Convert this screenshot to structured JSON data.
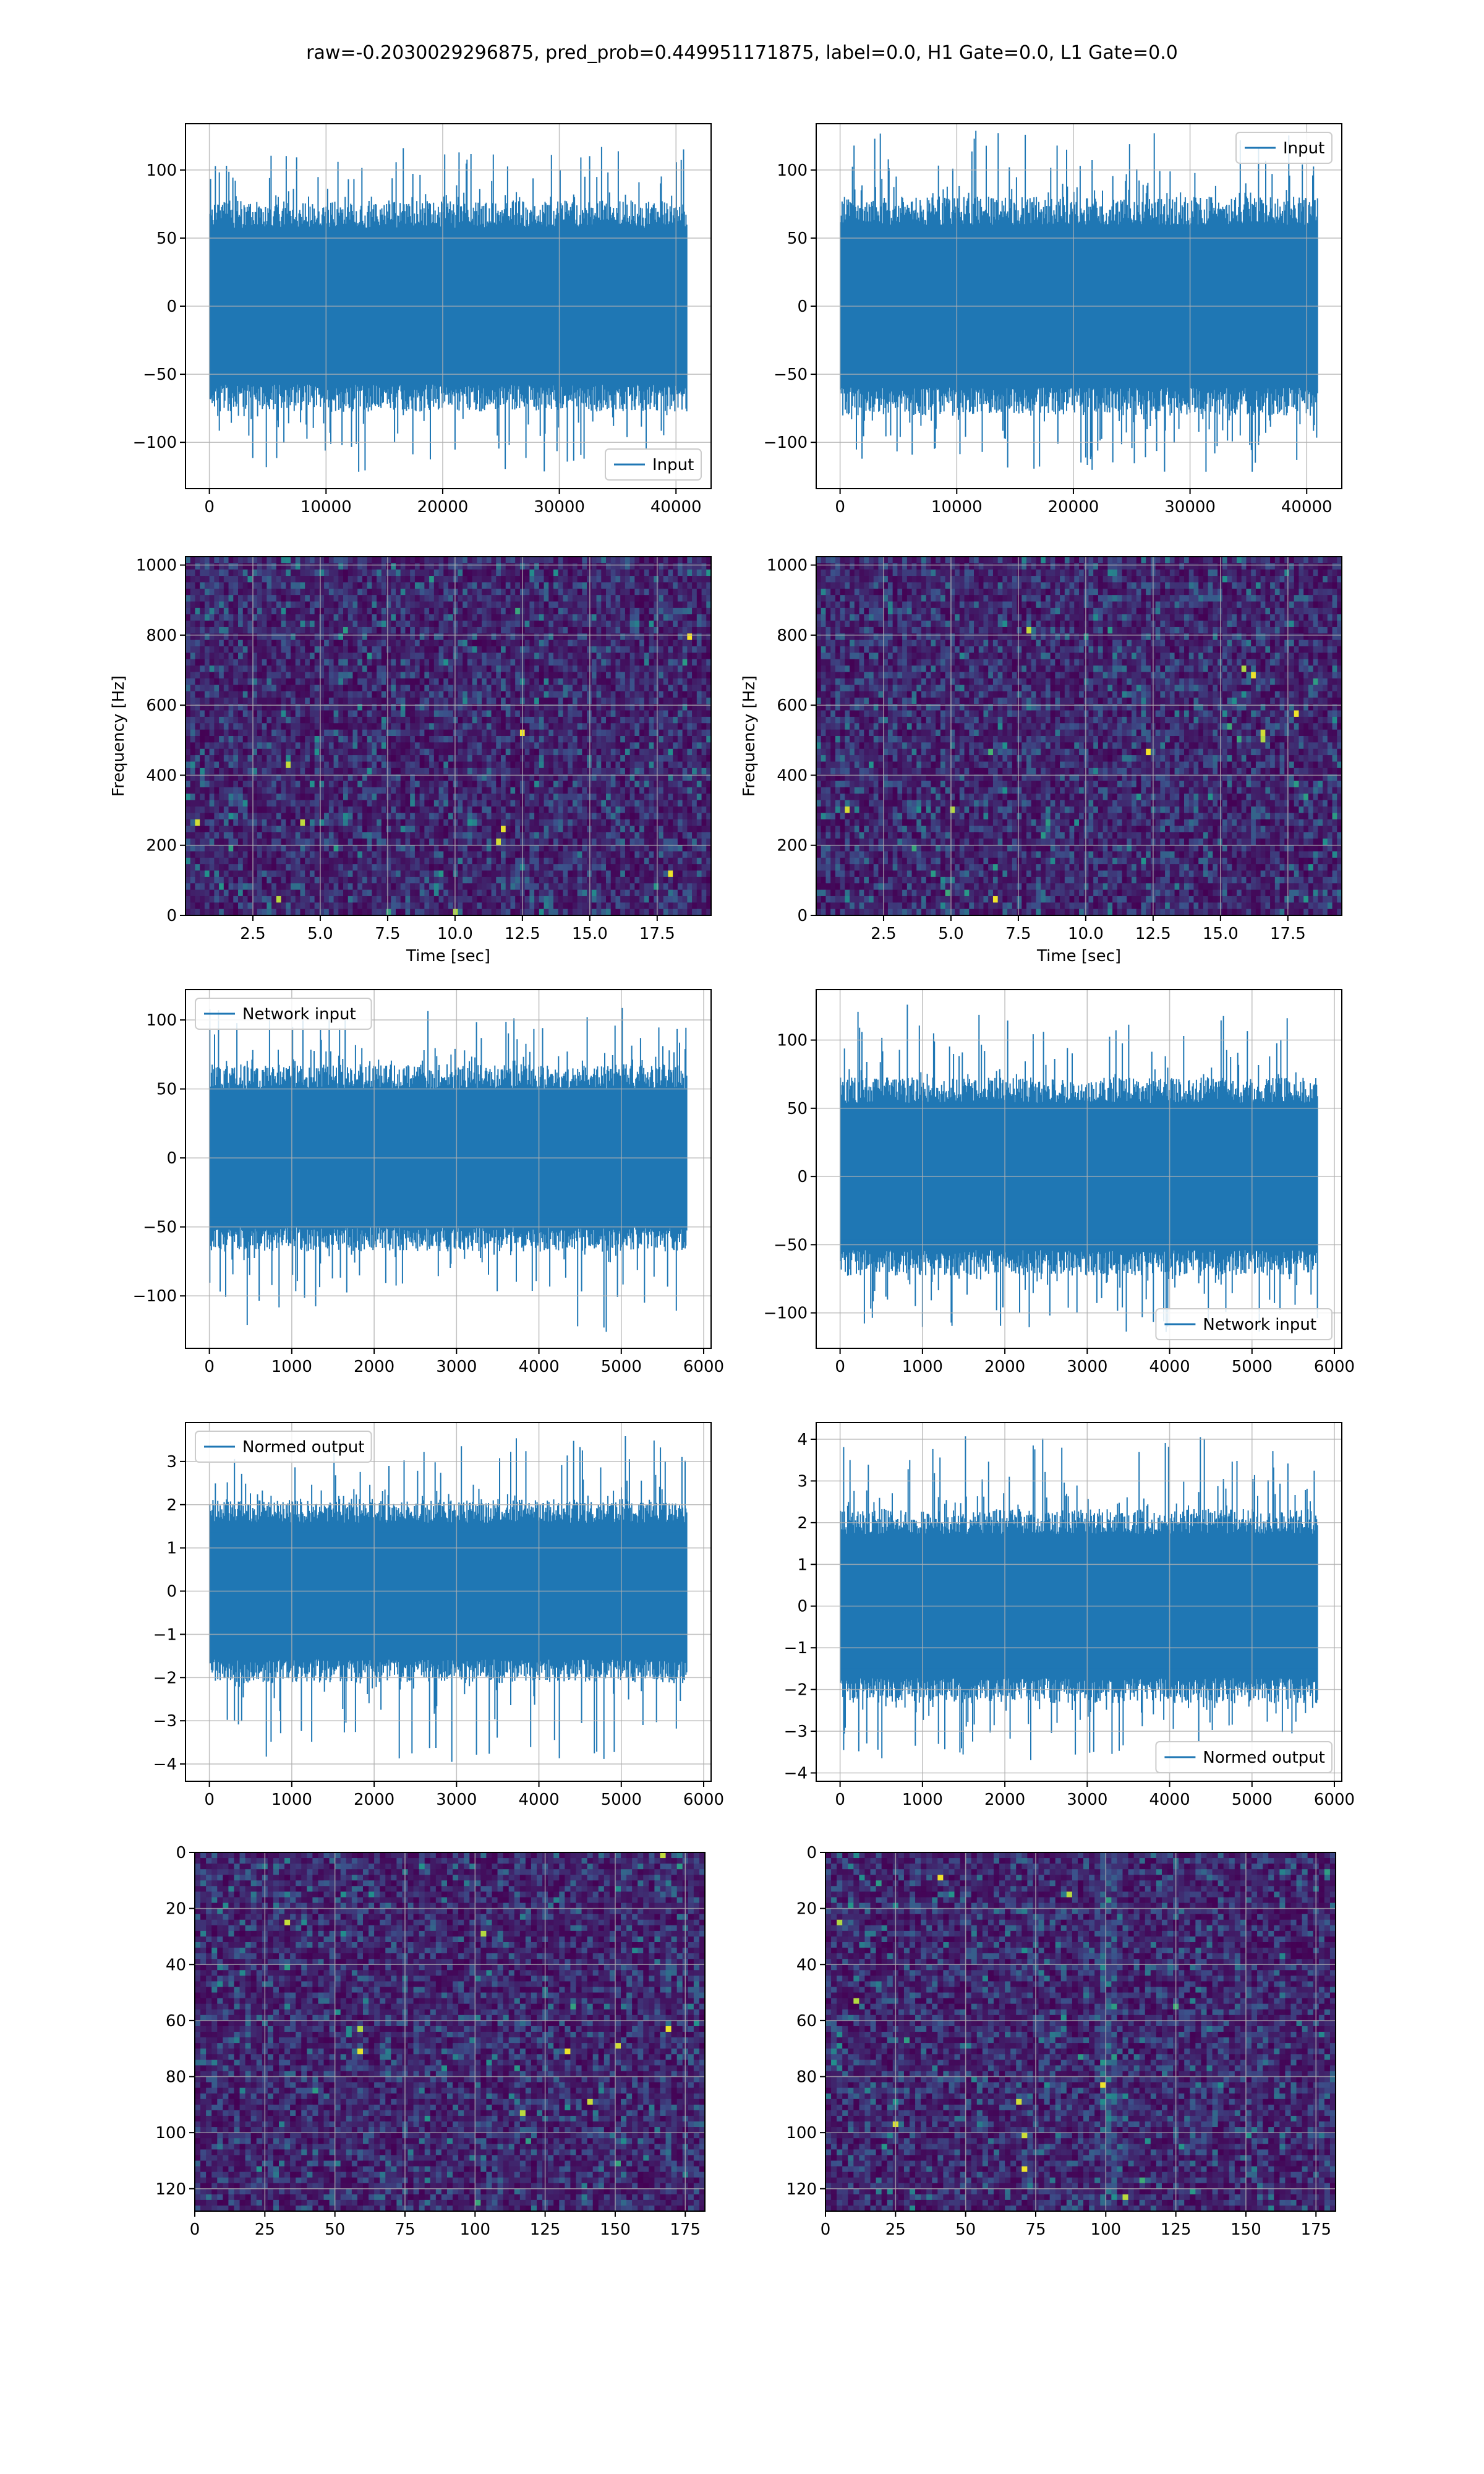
{
  "figure": {
    "title": "raw=-0.2030029296875, pred_prob=0.449951171875, label=0.0, H1 Gate=0.0, L1 Gate=0.0"
  },
  "colors": {
    "line": "#1f77b4",
    "grid": "#b0b0b0",
    "colormap": "viridis"
  },
  "chart_data": [
    {
      "id": "h1-input",
      "type": "line",
      "series": [
        {
          "name": "Input",
          "n_samples": 40960,
          "amplitude_band": [
            -80,
            80
          ],
          "spike_extent": [
            -122,
            117
          ]
        }
      ],
      "xlim": [
        -2048,
        43008
      ],
      "ylim": [
        -134,
        134
      ],
      "xticks": [
        0,
        10000,
        20000,
        30000,
        40000
      ],
      "yticks": [
        -100,
        -50,
        0,
        50,
        100
      ],
      "xlabel": "",
      "ylabel": "",
      "legend": "lower right",
      "grid": true,
      "seed": 11
    },
    {
      "id": "l1-input",
      "type": "line",
      "series": [
        {
          "name": "Input",
          "n_samples": 40960,
          "amplitude_band": [
            -83,
            83
          ],
          "spike_extent": [
            -122,
            130
          ]
        }
      ],
      "xlim": [
        -2048,
        43008
      ],
      "ylim": [
        -134,
        134
      ],
      "xticks": [
        0,
        10000,
        20000,
        30000,
        40000
      ],
      "yticks": [
        -100,
        -50,
        0,
        50,
        100
      ],
      "xlabel": "",
      "ylabel": "",
      "legend": "upper right",
      "grid": true,
      "seed": 23
    },
    {
      "id": "h1-spectrogram",
      "type": "heatmap",
      "colormap": "viridis",
      "xlim": [
        0,
        19.5
      ],
      "ylim": [
        0,
        1024
      ],
      "xticks": [
        2.5,
        5.0,
        7.5,
        10.0,
        12.5,
        15.0,
        17.5
      ],
      "yticks": [
        0,
        200,
        400,
        600,
        800,
        1000
      ],
      "xlabel": "Time [sec]",
      "ylabel": "Frequency [Hz]",
      "grid": true,
      "seed": 37
    },
    {
      "id": "l1-spectrogram",
      "type": "heatmap",
      "colormap": "viridis",
      "xlim": [
        0,
        19.5
      ],
      "ylim": [
        0,
        1024
      ],
      "xticks": [
        2.5,
        5.0,
        7.5,
        10.0,
        12.5,
        15.0,
        17.5
      ],
      "yticks": [
        0,
        200,
        400,
        600,
        800,
        1000
      ],
      "xlabel": "Time [sec]",
      "ylabel": "Frequency [Hz]",
      "grid": true,
      "seed": 41
    },
    {
      "id": "h1-network-input",
      "type": "line",
      "series": [
        {
          "name": "Network input",
          "n_samples": 5800,
          "amplitude_band": [
            -70,
            70
          ],
          "spike_extent": [
            -126,
            110
          ]
        }
      ],
      "xlim": [
        -290,
        6090
      ],
      "ylim": [
        -138,
        122
      ],
      "xticks": [
        0,
        1000,
        2000,
        3000,
        4000,
        5000,
        6000
      ],
      "yticks": [
        -100,
        -50,
        0,
        50,
        100
      ],
      "xlabel": "",
      "ylabel": "",
      "legend": "upper left",
      "grid": true,
      "seed": 53
    },
    {
      "id": "l1-network-input",
      "type": "line",
      "series": [
        {
          "name": "Network input",
          "n_samples": 5800,
          "amplitude_band": [
            -75,
            75
          ],
          "spike_extent": [
            -114,
            126
          ]
        }
      ],
      "xlim": [
        -290,
        6090
      ],
      "ylim": [
        -126,
        137
      ],
      "xticks": [
        0,
        1000,
        2000,
        3000,
        4000,
        5000,
        6000
      ],
      "yticks": [
        -100,
        -50,
        0,
        50,
        100
      ],
      "xlabel": "",
      "ylabel": "",
      "legend": "lower right",
      "grid": true,
      "seed": 67
    },
    {
      "id": "h1-normed-output",
      "type": "line",
      "series": [
        {
          "name": "Normed output",
          "n_samples": 5800,
          "amplitude_band": [
            -2.2,
            2.2
          ],
          "spike_extent": [
            -4.0,
            3.6
          ]
        }
      ],
      "xlim": [
        -290,
        6090
      ],
      "ylim": [
        -4.4,
        3.9
      ],
      "xticks": [
        0,
        1000,
        2000,
        3000,
        4000,
        5000,
        6000
      ],
      "yticks": [
        -4,
        -3,
        -2,
        -1,
        0,
        1,
        2,
        3
      ],
      "xlabel": "",
      "ylabel": "",
      "legend": "upper left",
      "grid": true,
      "seed": 71
    },
    {
      "id": "l1-normed-output",
      "type": "line",
      "series": [
        {
          "name": "Normed output",
          "n_samples": 5800,
          "amplitude_band": [
            -2.4,
            2.4
          ],
          "spike_extent": [
            -3.7,
            4.1
          ]
        }
      ],
      "xlim": [
        -290,
        6090
      ],
      "ylim": [
        -4.2,
        4.4
      ],
      "xticks": [
        0,
        1000,
        2000,
        3000,
        4000,
        5000,
        6000
      ],
      "yticks": [
        -4,
        -3,
        -2,
        -1,
        0,
        1,
        2,
        3,
        4
      ],
      "xlabel": "",
      "ylabel": "",
      "legend": "lower right",
      "grid": true,
      "seed": 89
    },
    {
      "id": "h1-features",
      "type": "heatmap",
      "colormap": "viridis",
      "rows": 128,
      "cols": 182,
      "xlim": [
        0,
        182
      ],
      "ylim": [
        128,
        0
      ],
      "xticks": [
        0,
        25,
        50,
        75,
        100,
        125,
        150,
        175
      ],
      "yticks": [
        0,
        20,
        40,
        60,
        80,
        100,
        120
      ],
      "xlabel": "",
      "ylabel": "",
      "grid": true,
      "seed": 97
    },
    {
      "id": "l1-features",
      "type": "heatmap",
      "colormap": "viridis",
      "rows": 128,
      "cols": 182,
      "xlim": [
        0,
        182
      ],
      "ylim": [
        128,
        0
      ],
      "xticks": [
        0,
        25,
        50,
        75,
        100,
        125,
        150,
        175
      ],
      "yticks": [
        0,
        20,
        40,
        60,
        80,
        100,
        120
      ],
      "xlabel": "",
      "ylabel": "",
      "grid": true,
      "seed": 101
    }
  ]
}
